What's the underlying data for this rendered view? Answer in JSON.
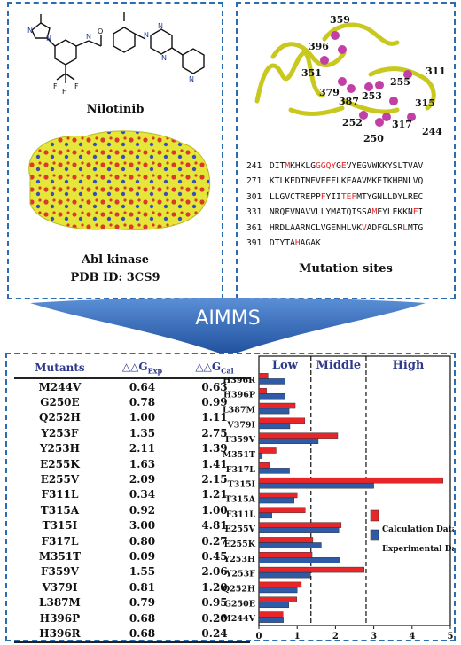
{
  "left_panel": {
    "drug_name": "Nilotinib",
    "protein_name": "Abl kinase",
    "pdb": "PDB ID: 3CS9"
  },
  "right_panel": {
    "caption": "Mutation sites",
    "residue_labels": [
      "359",
      "396",
      "351",
      "379",
      "387",
      "253",
      "255",
      "311",
      "315",
      "252",
      "250",
      "317",
      "244"
    ],
    "sequence": [
      {
        "num": "241",
        "parts": [
          [
            "DIT",
            false
          ],
          [
            "M",
            true
          ],
          [
            "KHKLG",
            false
          ],
          [
            "GG",
            true
          ],
          [
            "QY",
            true
          ],
          [
            "G",
            false
          ],
          [
            "E",
            true
          ],
          [
            "VYEGVWKKYSLTVAV",
            false
          ]
        ]
      },
      {
        "num": "271",
        "parts": [
          [
            "KTLKEDTMEVEEFLKEAAVMKEIKHPNLVQ",
            false
          ]
        ]
      },
      {
        "num": "301",
        "parts": [
          [
            "LLGVCTREPP",
            false
          ],
          [
            "F",
            true
          ],
          [
            "YII",
            false
          ],
          [
            "TEF",
            true
          ],
          [
            "MTYGNLLDYLREC",
            false
          ]
        ]
      },
      {
        "num": "331",
        "parts": [
          [
            "NRQEVNAVVLLYMATQISSA",
            false
          ],
          [
            "M",
            true
          ],
          [
            "EYLEKKN",
            false
          ],
          [
            "F",
            true
          ],
          [
            "I",
            false
          ]
        ]
      },
      {
        "num": "361",
        "parts": [
          [
            "HRDLAARNCLVGENHLVK",
            false
          ],
          [
            "V",
            true
          ],
          [
            "ADFGLSR",
            false
          ],
          [
            "L",
            true
          ],
          [
            "MTG",
            false
          ]
        ]
      },
      {
        "num": "391",
        "parts": [
          [
            "DTYTA",
            false
          ],
          [
            "H",
            true
          ],
          [
            "AGAK",
            false
          ]
        ]
      }
    ]
  },
  "arrow_label": "AIMMS",
  "table": {
    "headers": {
      "mutants": "Mutants",
      "exp": "△△G",
      "exp_sub": "Exp",
      "cal": "△△G",
      "cal_sub": "Cal"
    },
    "rows": [
      [
        "M244V",
        "0.64",
        "0.63"
      ],
      [
        "G250E",
        "0.78",
        "0.99"
      ],
      [
        "Q252H",
        "1.00",
        "1.11"
      ],
      [
        "Y253F",
        "1.35",
        "2.75"
      ],
      [
        "Y253H",
        "2.11",
        "1.39"
      ],
      [
        "E255K",
        "1.63",
        "1.41"
      ],
      [
        "E255V",
        "2.09",
        "2.15"
      ],
      [
        "F311L",
        "0.34",
        "1.21"
      ],
      [
        "T315A",
        "0.92",
        "1.00"
      ],
      [
        "T315I",
        "3.00",
        "4.81"
      ],
      [
        "F317L",
        "0.80",
        "0.27"
      ],
      [
        "M351T",
        "0.09",
        "0.45"
      ],
      [
        "F359V",
        "1.55",
        "2.06"
      ],
      [
        "V379I",
        "0.81",
        "1.20"
      ],
      [
        "L387M",
        "0.79",
        "0.95"
      ],
      [
        "H396P",
        "0.68",
        "0.20"
      ],
      [
        "H396R",
        "0.68",
        "0.24"
      ]
    ]
  },
  "chart_data": {
    "type": "bar",
    "orientation": "horizontal",
    "categories": [
      "H396R",
      "H396P",
      "L387M",
      "V379I",
      "F359V",
      "M351T",
      "F317L",
      "T315I",
      "T315A",
      "F311L",
      "E255V",
      "E255K",
      "Y253H",
      "Y253F",
      "Q252H",
      "G250E",
      "M244V"
    ],
    "series": [
      {
        "name": "Calculation Data",
        "color": "#e8262a",
        "values": [
          0.24,
          0.2,
          0.95,
          1.2,
          2.06,
          0.45,
          0.27,
          4.81,
          1.0,
          1.21,
          2.15,
          1.41,
          1.39,
          2.75,
          1.11,
          0.99,
          0.63
        ]
      },
      {
        "name": "Experimental Data",
        "color": "#2f5aa6",
        "values": [
          0.68,
          0.68,
          0.79,
          0.81,
          1.55,
          0.09,
          0.8,
          3.0,
          0.92,
          0.34,
          2.09,
          1.63,
          2.11,
          1.35,
          1.0,
          0.78,
          0.64
        ]
      }
    ],
    "xlim": [
      0,
      5
    ],
    "xticks": [
      "0",
      "1",
      "2",
      "3",
      "4",
      "5"
    ],
    "regions": [
      {
        "label": "Low",
        "end": 1.36
      },
      {
        "label": "Middle",
        "end": 2.8
      },
      {
        "label": "High",
        "end": 5
      }
    ],
    "legend_position": "right"
  }
}
